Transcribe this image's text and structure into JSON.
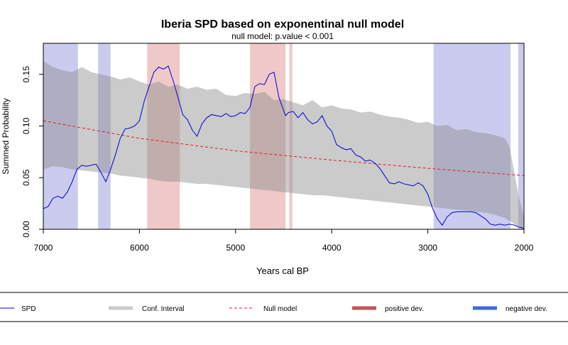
{
  "chart_data": {
    "type": "area",
    "title": "Iberia SPD based on exponentinal null model",
    "subtitle": "null model: p.value < 0.001",
    "xlabel": "Years cal BP",
    "ylabel": "Summed Probability",
    "xlim": [
      7000,
      2000
    ],
    "ylim": [
      0,
      0.18
    ],
    "x_ticks": [
      7000,
      6000,
      5000,
      4000,
      3000,
      2000
    ],
    "x_tick_labels": [
      "7000",
      "6000",
      "5000",
      "4000",
      "3000",
      "2000"
    ],
    "y_ticks": [
      0,
      0.05,
      0.1,
      0.15
    ],
    "y_tick_labels": [
      "0.00",
      "0.05",
      "0.10",
      "0.15"
    ],
    "legend_position": "bottom",
    "colors": {
      "spd": "#0000cc",
      "conf_interval": "#cbcbcb",
      "null_model": "#e8191e",
      "positive_dev": "#c0545a",
      "negative_dev": "#4169e1",
      "positive_band": "#efc9c9",
      "negative_band": "#cbcbef"
    },
    "positive_deviations": [
      [
        5920,
        5580
      ],
      [
        4850,
        4480
      ],
      [
        4440,
        4410
      ]
    ],
    "negative_deviations": [
      [
        7000,
        6640
      ],
      [
        6430,
        6300
      ],
      [
        2940,
        2140
      ],
      [
        2060,
        2000
      ]
    ],
    "null_model": {
      "x": [
        7000,
        6000,
        5000,
        4000,
        3000,
        2000
      ],
      "y": [
        0.105,
        0.088,
        0.076,
        0.067,
        0.059,
        0.052
      ]
    },
    "confidence_interval": {
      "x": [
        7000,
        6900,
        6800,
        6700,
        6600,
        6500,
        6400,
        6300,
        6200,
        6100,
        6000,
        5900,
        5800,
        5700,
        5600,
        5500,
        5400,
        5300,
        5200,
        5100,
        5000,
        4900,
        4800,
        4700,
        4600,
        4500,
        4400,
        4300,
        4200,
        4100,
        4000,
        3900,
        3800,
        3700,
        3600,
        3500,
        3400,
        3300,
        3200,
        3100,
        3000,
        2900,
        2800,
        2700,
        2600,
        2500,
        2400,
        2300,
        2200,
        2150,
        2100,
        2050,
        2000
      ],
      "upper": [
        0.163,
        0.157,
        0.154,
        0.152,
        0.157,
        0.152,
        0.15,
        0.148,
        0.145,
        0.147,
        0.143,
        0.14,
        0.143,
        0.138,
        0.14,
        0.136,
        0.138,
        0.135,
        0.136,
        0.13,
        0.129,
        0.132,
        0.131,
        0.133,
        0.125,
        0.126,
        0.123,
        0.12,
        0.125,
        0.118,
        0.12,
        0.117,
        0.116,
        0.113,
        0.114,
        0.111,
        0.109,
        0.108,
        0.106,
        0.103,
        0.104,
        0.1,
        0.101,
        0.096,
        0.097,
        0.094,
        0.093,
        0.091,
        0.088,
        0.08,
        0.055,
        0.03,
        0.012
      ],
      "lower": [
        0.058,
        0.061,
        0.06,
        0.058,
        0.057,
        0.056,
        0.055,
        0.054,
        0.052,
        0.051,
        0.05,
        0.049,
        0.047,
        0.046,
        0.046,
        0.045,
        0.044,
        0.044,
        0.043,
        0.042,
        0.041,
        0.04,
        0.039,
        0.038,
        0.037,
        0.036,
        0.035,
        0.034,
        0.033,
        0.033,
        0.032,
        0.031,
        0.03,
        0.029,
        0.028,
        0.027,
        0.026,
        0.025,
        0.024,
        0.023,
        0.022,
        0.021,
        0.02,
        0.019,
        0.018,
        0.017,
        0.016,
        0.014,
        0.011,
        0.008,
        0.005,
        0.002,
        0.0
      ]
    },
    "series": [
      {
        "name": "SPD",
        "x": [
          7000,
          6950,
          6900,
          6850,
          6800,
          6750,
          6700,
          6650,
          6600,
          6550,
          6500,
          6450,
          6400,
          6350,
          6300,
          6250,
          6200,
          6150,
          6100,
          6050,
          6000,
          5950,
          5900,
          5850,
          5800,
          5750,
          5700,
          5650,
          5600,
          5550,
          5500,
          5450,
          5400,
          5350,
          5300,
          5250,
          5200,
          5150,
          5100,
          5050,
          5000,
          4950,
          4900,
          4850,
          4800,
          4750,
          4700,
          4650,
          4600,
          4550,
          4500,
          4480,
          4450,
          4400,
          4350,
          4300,
          4250,
          4200,
          4150,
          4100,
          4050,
          4000,
          3950,
          3900,
          3850,
          3800,
          3750,
          3700,
          3650,
          3600,
          3550,
          3500,
          3450,
          3400,
          3350,
          3300,
          3250,
          3200,
          3150,
          3100,
          3050,
          3000,
          2950,
          2900,
          2850,
          2800,
          2750,
          2700,
          2650,
          2600,
          2550,
          2500,
          2450,
          2400,
          2350,
          2300,
          2250,
          2200,
          2150,
          2100,
          2050,
          2000
        ],
        "y": [
          0.02,
          0.022,
          0.03,
          0.032,
          0.03,
          0.036,
          0.046,
          0.058,
          0.062,
          0.061,
          0.062,
          0.063,
          0.055,
          0.046,
          0.058,
          0.072,
          0.088,
          0.097,
          0.098,
          0.1,
          0.105,
          0.124,
          0.138,
          0.152,
          0.157,
          0.155,
          0.158,
          0.144,
          0.128,
          0.111,
          0.106,
          0.096,
          0.09,
          0.102,
          0.108,
          0.111,
          0.11,
          0.109,
          0.112,
          0.109,
          0.11,
          0.113,
          0.112,
          0.118,
          0.138,
          0.141,
          0.14,
          0.15,
          0.152,
          0.128,
          0.115,
          0.11,
          0.113,
          0.114,
          0.108,
          0.113,
          0.106,
          0.102,
          0.104,
          0.11,
          0.1,
          0.095,
          0.082,
          0.079,
          0.077,
          0.078,
          0.072,
          0.07,
          0.066,
          0.067,
          0.064,
          0.059,
          0.052,
          0.045,
          0.044,
          0.046,
          0.044,
          0.043,
          0.042,
          0.045,
          0.042,
          0.034,
          0.02,
          0.01,
          0.004,
          0.012,
          0.016,
          0.017,
          0.017,
          0.017,
          0.017,
          0.016,
          0.013,
          0.01,
          0.005,
          0.004,
          0.005,
          0.004,
          0.005,
          0.004,
          0.002,
          0.001
        ]
      }
    ]
  },
  "legend": {
    "items": [
      {
        "label": "SPD",
        "style": "thin-line"
      },
      {
        "label": "Conf. Interval",
        "style": "thick-line"
      },
      {
        "label": "Null model",
        "style": "dashed-line"
      },
      {
        "label": "positive dev.",
        "style": "thick-line"
      },
      {
        "label": "negative dev.",
        "style": "thick-line"
      }
    ]
  }
}
